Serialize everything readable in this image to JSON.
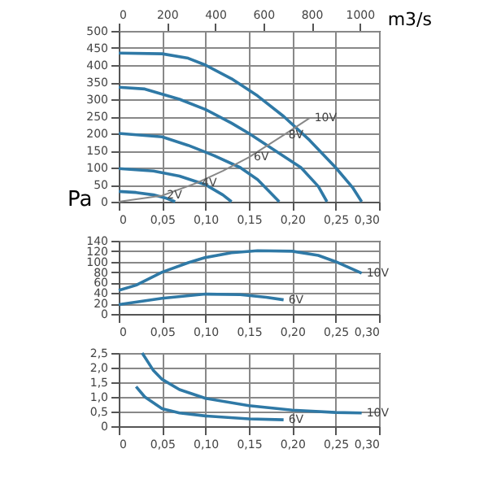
{
  "chart_data": [
    {
      "type": "line",
      "ylabel": "Pa",
      "x2label": "m3/s",
      "grid": true,
      "marker": "none",
      "line_style": "solid",
      "xlim": [
        0,
        0.3
      ],
      "xticks": [
        0,
        {
          "value": 0.05,
          "label": "0,05"
        },
        {
          "value": 0.1,
          "label": "0,10"
        },
        {
          "value": 0.15,
          "label": "0,15"
        },
        {
          "value": 0.2,
          "label": "0,20"
        },
        {
          "value": 0.25,
          "label": "0,25"
        },
        {
          "value": 0.3,
          "label": "0,30"
        }
      ],
      "x2lim": [
        0,
        1080
      ],
      "x2ticks": [
        0,
        200,
        400,
        600,
        800,
        1000
      ],
      "ylim": [
        0,
        500
      ],
      "yticks": [
        0,
        50,
        100,
        150,
        200,
        250,
        300,
        350,
        400,
        450,
        500
      ],
      "series": [
        {
          "color": "#2f79a6",
          "x": [
            0,
            0.05,
            0.08,
            0.1,
            0.13,
            0.16,
            0.19,
            0.22,
            0.25,
            0.27,
            0.28
          ],
          "values": [
            435,
            433,
            420,
            400,
            360,
            310,
            250,
            180,
            100,
            40,
            0
          ]
        },
        {
          "color": "#2f79a6",
          "x": [
            0,
            0.03,
            0.07,
            0.1,
            0.13,
            0.15,
            0.18,
            0.21,
            0.23,
            0.24
          ],
          "values": [
            335,
            330,
            300,
            270,
            230,
            200,
            150,
            100,
            45,
            0
          ]
        },
        {
          "color": "#2f79a6",
          "x": [
            0,
            0.05,
            0.08,
            0.11,
            0.14,
            0.16,
            0.185
          ],
          "values": [
            200,
            190,
            165,
            135,
            100,
            65,
            0
          ]
        },
        {
          "color": "#2f79a6",
          "x": [
            0,
            0.04,
            0.07,
            0.1,
            0.12,
            0.13
          ],
          "values": [
            97,
            90,
            75,
            50,
            20,
            0
          ]
        },
        {
          "color": "#2f79a6",
          "x": [
            0,
            0.02,
            0.04,
            0.055,
            0.065
          ],
          "values": [
            30,
            27,
            20,
            10,
            0
          ]
        },
        {
          "color": "#888888",
          "x": [
            0,
            0.05,
            0.09,
            0.12,
            0.15,
            0.19,
            0.22
          ],
          "values": [
            0,
            18,
            55,
            90,
            130,
            195,
            245
          ]
        }
      ],
      "annotations": [
        {
          "text": "10V",
          "x": 0.22,
          "y": 245
        },
        {
          "text": "8V",
          "x": 0.19,
          "y": 195
        },
        {
          "text": "6V",
          "x": 0.15,
          "y": 130
        },
        {
          "text": "4V",
          "x": 0.09,
          "y": 55
        },
        {
          "text": "2V",
          "x": 0.05,
          "y": 18
        }
      ]
    },
    {
      "type": "line",
      "grid": true,
      "marker": "none",
      "line_style": "solid",
      "xlim": [
        0,
        0.3
      ],
      "xticks": [
        0,
        {
          "value": 0.05,
          "label": "0,05"
        },
        {
          "value": 0.1,
          "label": "0,10"
        },
        {
          "value": 0.15,
          "label": "0,15"
        },
        {
          "value": 0.2,
          "label": "0,20"
        },
        {
          "value": 0.25,
          "label": "0,25"
        },
        {
          "value": 0.3,
          "label": "0,30"
        }
      ],
      "ylim": [
        0,
        140
      ],
      "yticks": [
        0,
        20,
        40,
        60,
        80,
        100,
        120,
        140
      ],
      "series": [
        {
          "color": "#2f79a6",
          "x": [
            0,
            0.02,
            0.05,
            0.08,
            0.1,
            0.13,
            0.16,
            0.2,
            0.23,
            0.25,
            0.28
          ],
          "values": [
            45,
            55,
            80,
            98,
            108,
            117,
            121,
            120,
            112,
            100,
            78
          ]
        },
        {
          "color": "#2f79a6",
          "x": [
            0,
            0.05,
            0.1,
            0.14,
            0.17,
            0.19
          ],
          "values": [
            18,
            30,
            38,
            37,
            32,
            27
          ]
        }
      ],
      "annotations": [
        {
          "text": "10V",
          "x": 0.28,
          "y": 78
        },
        {
          "text": "6V",
          "x": 0.19,
          "y": 27
        }
      ]
    },
    {
      "type": "line",
      "grid": true,
      "marker": "none",
      "line_style": "solid",
      "xlim": [
        0,
        0.3
      ],
      "xticks": [
        0,
        {
          "value": 0.05,
          "label": "0,05"
        },
        {
          "value": 0.1,
          "label": "0,10"
        },
        {
          "value": 0.15,
          "label": "0,15"
        },
        {
          "value": 0.2,
          "label": "0,20"
        },
        {
          "value": 0.25,
          "label": "0,25"
        },
        {
          "value": 0.3,
          "label": "0,30"
        }
      ],
      "ylim": [
        0,
        2.5
      ],
      "yticks": [
        0,
        {
          "value": 0.5,
          "label": "0,5"
        },
        {
          "value": 1,
          "label": "1,0"
        },
        {
          "value": 1.5,
          "label": "1,5"
        },
        {
          "value": 2,
          "label": "2,0"
        },
        {
          "value": 2.5,
          "label": "2,5"
        }
      ],
      "series": [
        {
          "color": "#2f79a6",
          "x": [
            0.027,
            0.04,
            0.05,
            0.07,
            0.1,
            0.15,
            0.2,
            0.25,
            0.28
          ],
          "values": [
            2.5,
            1.9,
            1.6,
            1.25,
            0.95,
            0.7,
            0.55,
            0.47,
            0.45
          ]
        },
        {
          "color": "#2f79a6",
          "x": [
            0.02,
            0.03,
            0.05,
            0.07,
            0.1,
            0.15,
            0.19
          ],
          "values": [
            1.35,
            1.0,
            0.6,
            0.45,
            0.35,
            0.25,
            0.22
          ]
        }
      ],
      "annotations": [
        {
          "text": "10V",
          "x": 0.28,
          "y": 0.45
        },
        {
          "text": "6V",
          "x": 0.19,
          "y": 0.22
        }
      ]
    }
  ]
}
